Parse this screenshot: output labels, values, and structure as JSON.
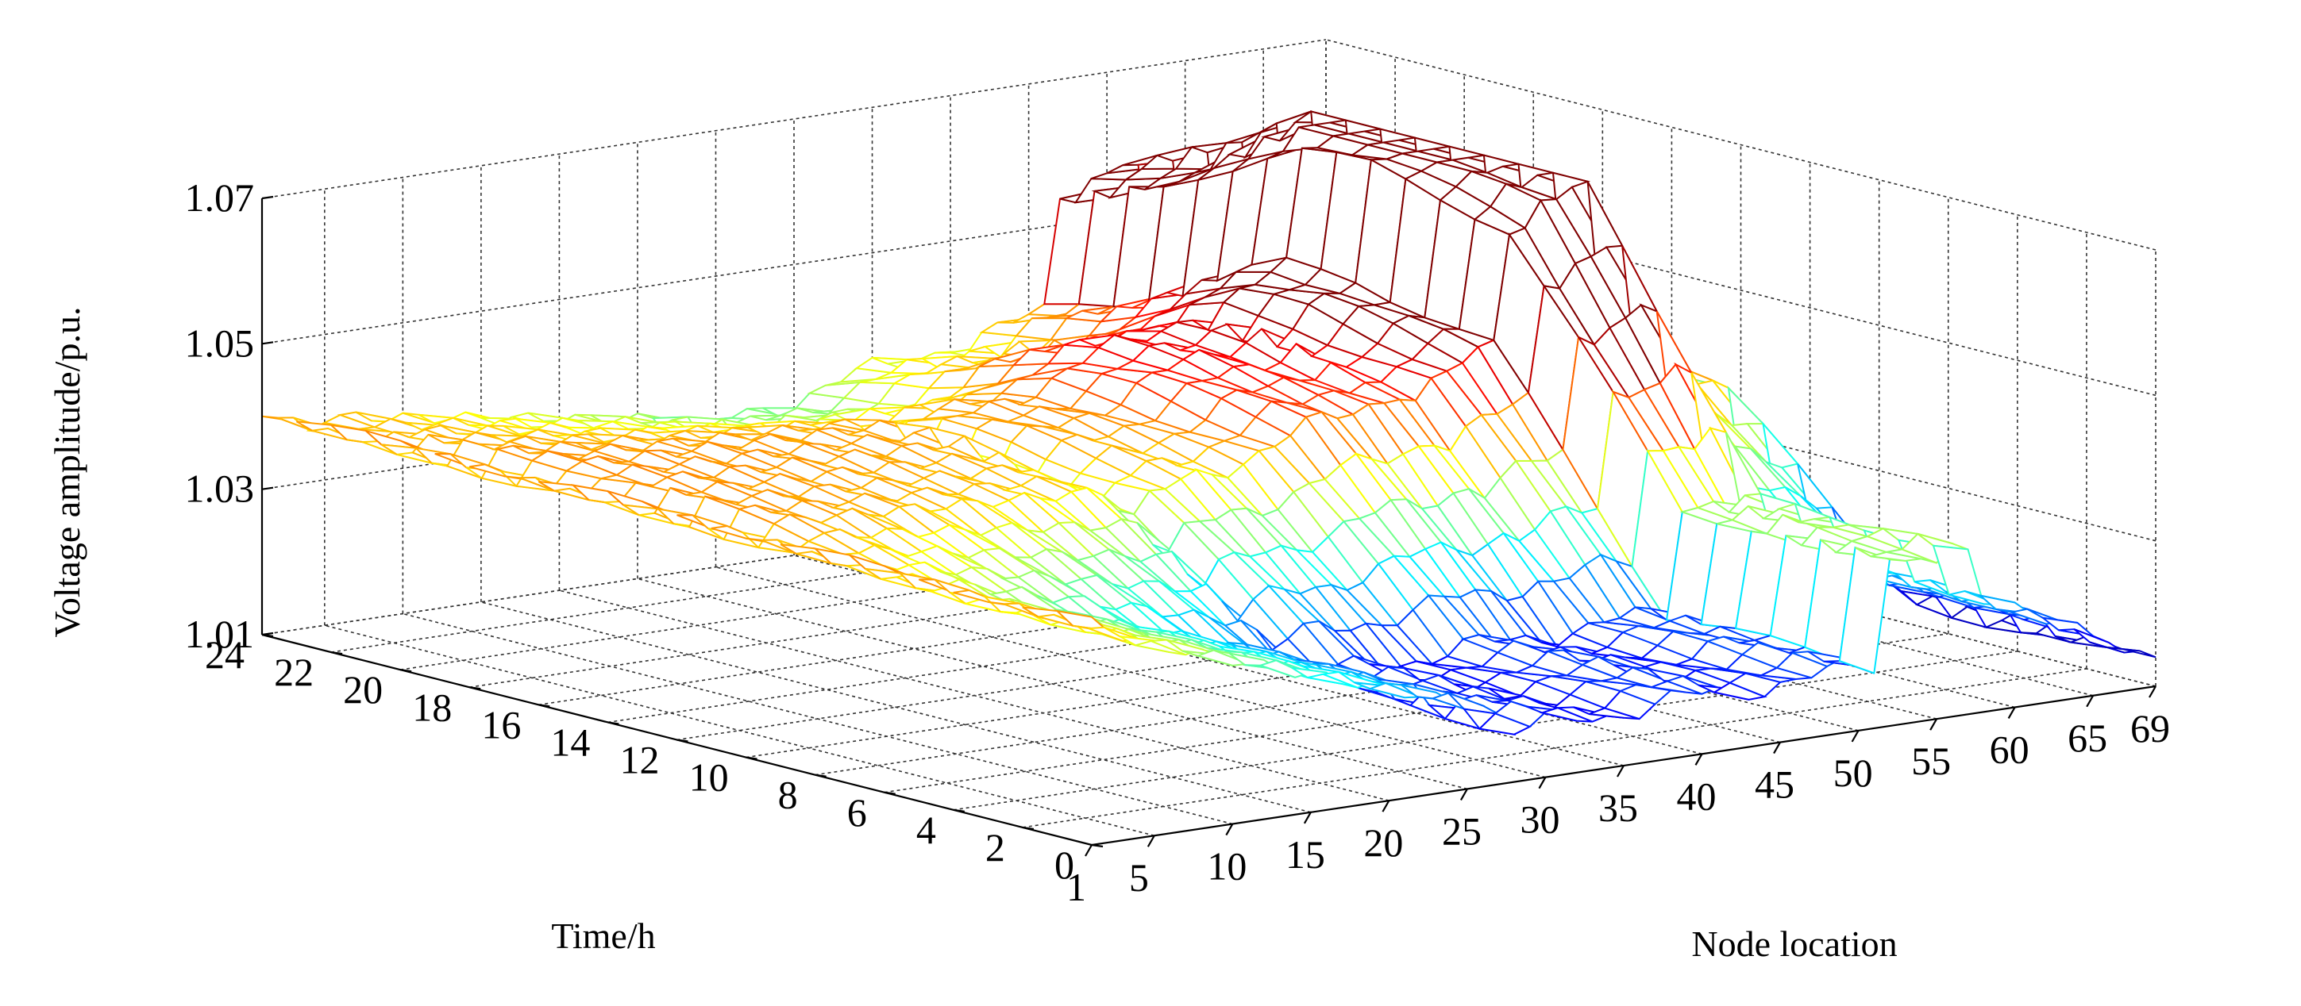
{
  "chart_data": {
    "type": "surface",
    "title": "",
    "xlabel": "Node location",
    "ylabel": "Time/h",
    "zlabel": "Voltage amplitude/p.u.",
    "x_ticks": [
      "1",
      "5",
      "10",
      "15",
      "20",
      "25",
      "30",
      "35",
      "40",
      "45",
      "50",
      "55",
      "60",
      "65",
      "69"
    ],
    "y_ticks": [
      "0",
      "2",
      "4",
      "6",
      "8",
      "10",
      "12",
      "14",
      "16",
      "18",
      "20",
      "22",
      "24"
    ],
    "z_ticks": [
      "1.01",
      "1.03",
      "1.05",
      "1.07"
    ],
    "xlim": [
      1,
      69
    ],
    "ylim": [
      0,
      24
    ],
    "zlim": [
      1.01,
      1.07
    ],
    "grid": true,
    "colormap": "jet",
    "render": "mesh"
  }
}
